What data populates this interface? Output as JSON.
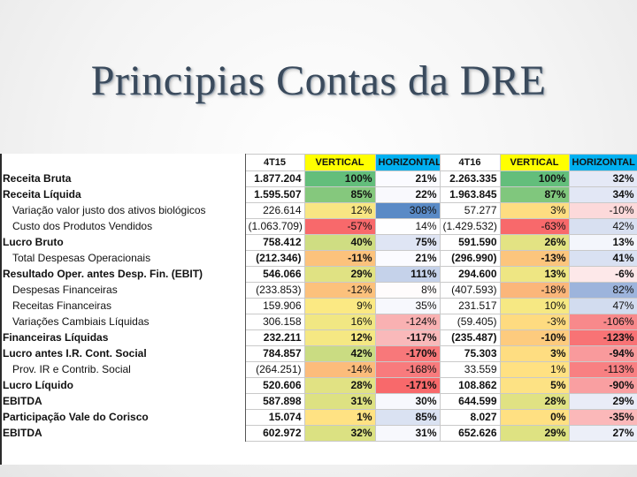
{
  "title": "Principias Contas da DRE",
  "table": {
    "headers": [
      "4T15",
      "VERTICAL",
      "HORIZONTAL",
      "4T16",
      "VERTICAL",
      "HORIZONTAL"
    ],
    "rows": [
      {
        "label": "Receita Bruta",
        "bold": true,
        "indent": false,
        "cells": [
          "1.877.204",
          "100%",
          "21%",
          "2.263.335",
          "100%",
          "32%"
        ],
        "colors": [
          "",
          "#63be7b",
          "#fbfbff",
          "",
          "#63be7b",
          "#e5e9f6"
        ]
      },
      {
        "label": "Receita Líquida",
        "bold": true,
        "indent": false,
        "cells": [
          "1.595.507",
          "85%",
          "22%",
          "1.963.845",
          "87%",
          "34%"
        ],
        "colors": [
          "",
          "#85c87d",
          "#f9f9fd",
          "",
          "#80c77d",
          "#e2e7f5"
        ]
      },
      {
        "label": "Variação valor justo dos ativos biológicos",
        "bold": false,
        "indent": true,
        "cells": [
          "226.614",
          "12%",
          "308%",
          "57.277",
          "3%",
          "-10%"
        ],
        "colors": [
          "",
          "#f8e683",
          "#5a8ac6",
          "",
          "#fedd81",
          "#fcd9da"
        ]
      },
      {
        "label": "Custo dos Produtos Vendidos",
        "bold": false,
        "indent": true,
        "cells": [
          "(1.063.709)",
          "-57%",
          "14%",
          "(1.429.532)",
          "-63%",
          "42%"
        ],
        "colors": [
          "",
          "#f8696b",
          "#fefeff",
          "",
          "#f8696b",
          "#d8e0f1"
        ]
      },
      {
        "label": "Lucro Bruto",
        "bold": true,
        "indent": false,
        "cells": [
          "758.412",
          "40%",
          "75%",
          "591.590",
          "26%",
          "13%"
        ],
        "colors": [
          "",
          "#cfdd82",
          "#dfe5f4",
          "",
          "#e3e383",
          "#f4f6fc"
        ]
      },
      {
        "label": "Total Despesas Operacionais",
        "bold": true,
        "indent": true,
        "cells": [
          "(212.346)",
          "-11%",
          "21%",
          "(296.990)",
          "-13%",
          "41%"
        ],
        "colors": [
          "",
          "#fcc27c",
          "#fbfbff",
          "",
          "#fcc57d",
          "#d9e1f2"
        ]
      },
      {
        "label": "Resultado Oper. antes Desp. Fin. (EBIT)",
        "bold": true,
        "indent": false,
        "cells": [
          "546.066",
          "29%",
          "111%",
          "294.600",
          "13%",
          "-6%"
        ],
        "colors": [
          "",
          "#e0e283",
          "#c5d2ea",
          "",
          "#eee683",
          "#fde8e9"
        ]
      },
      {
        "label": "Despesas Financeiras",
        "bold": false,
        "indent": true,
        "cells": [
          "(233.853)",
          "-12%",
          "8%",
          "(407.593)",
          "-18%",
          "82%"
        ],
        "colors": [
          "",
          "#fcc17c",
          "#fffcfc",
          "",
          "#fbb67a",
          "#9db4dc"
        ]
      },
      {
        "label": "Receitas Financeiras",
        "bold": false,
        "indent": true,
        "cells": [
          "159.906",
          "9%",
          "35%",
          "231.517",
          "10%",
          "47%"
        ],
        "colors": [
          "",
          "#fbe983",
          "#f7f8fd",
          "",
          "#f6e883",
          "#d2dcef"
        ]
      },
      {
        "label": "Variações Cambiais Líquidas",
        "bold": false,
        "indent": true,
        "cells": [
          "306.158",
          "16%",
          "-124%",
          "(59.405)",
          "-3%",
          "-106%"
        ],
        "colors": [
          "",
          "#f1e783",
          "#f9b1b2",
          "",
          "#fedb80",
          "#f8898b"
        ]
      },
      {
        "label": "Financeiras Líquidas",
        "bold": true,
        "indent": false,
        "cells": [
          "232.211",
          "12%",
          "-117%",
          "(235.487)",
          "-10%",
          "-123%"
        ],
        "colors": [
          "",
          "#f5e883",
          "#f9b9ba",
          "",
          "#fdcb7e",
          "#f87375"
        ]
      },
      {
        "label": "Lucro antes I.R. Cont. Social",
        "bold": true,
        "indent": false,
        "cells": [
          "784.857",
          "42%",
          "-170%",
          "75.303",
          "3%",
          "-94%"
        ],
        "colors": [
          "",
          "#cadc82",
          "#f8787a",
          "",
          "#fedd81",
          "#f99a9c"
        ]
      },
      {
        "label": "Prov. IR e Contrib. Social",
        "bold": false,
        "indent": true,
        "cells": [
          "(264.251)",
          "-14%",
          "-168%",
          "33.559",
          "1%",
          "-113%"
        ],
        "colors": [
          "",
          "#fcbc7b",
          "#f87b7d",
          "",
          "#ffe182",
          "#f88082"
        ]
      },
      {
        "label": "Lucro Líquido",
        "bold": true,
        "indent": false,
        "cells": [
          "520.606",
          "28%",
          "-171%",
          "108.862",
          "5%",
          "-90%"
        ],
        "colors": [
          "",
          "#e1e283",
          "#f8696b",
          "",
          "#fde284",
          "#f99fa1"
        ]
      },
      {
        "label": "EBITDA",
        "bold": true,
        "indent": false,
        "cells": [
          "587.898",
          "31%",
          "30%",
          "644.599",
          "28%",
          "29%"
        ],
        "colors": [
          "",
          "#dde182",
          "#f7f8fd",
          "",
          "#e0e283",
          "#e9ecf7"
        ]
      },
      {
        "label": "Participação Vale do Corisco",
        "bold": true,
        "indent": false,
        "cells": [
          "15.074",
          "1%",
          "85%",
          "8.027",
          "0%",
          "-35%"
        ],
        "colors": [
          "",
          "#ffe283",
          "#dae2f2",
          "",
          "#ffe082",
          "#fbb8b9"
        ]
      },
      {
        "label": "EBITDA",
        "bold": true,
        "indent": false,
        "cells": [
          "602.972",
          "32%",
          "31%",
          "652.626",
          "29%",
          "27%"
        ],
        "colors": [
          "",
          "#dbe182",
          "#f7f8fd",
          "",
          "#dee282",
          "#eceff8"
        ]
      }
    ]
  }
}
